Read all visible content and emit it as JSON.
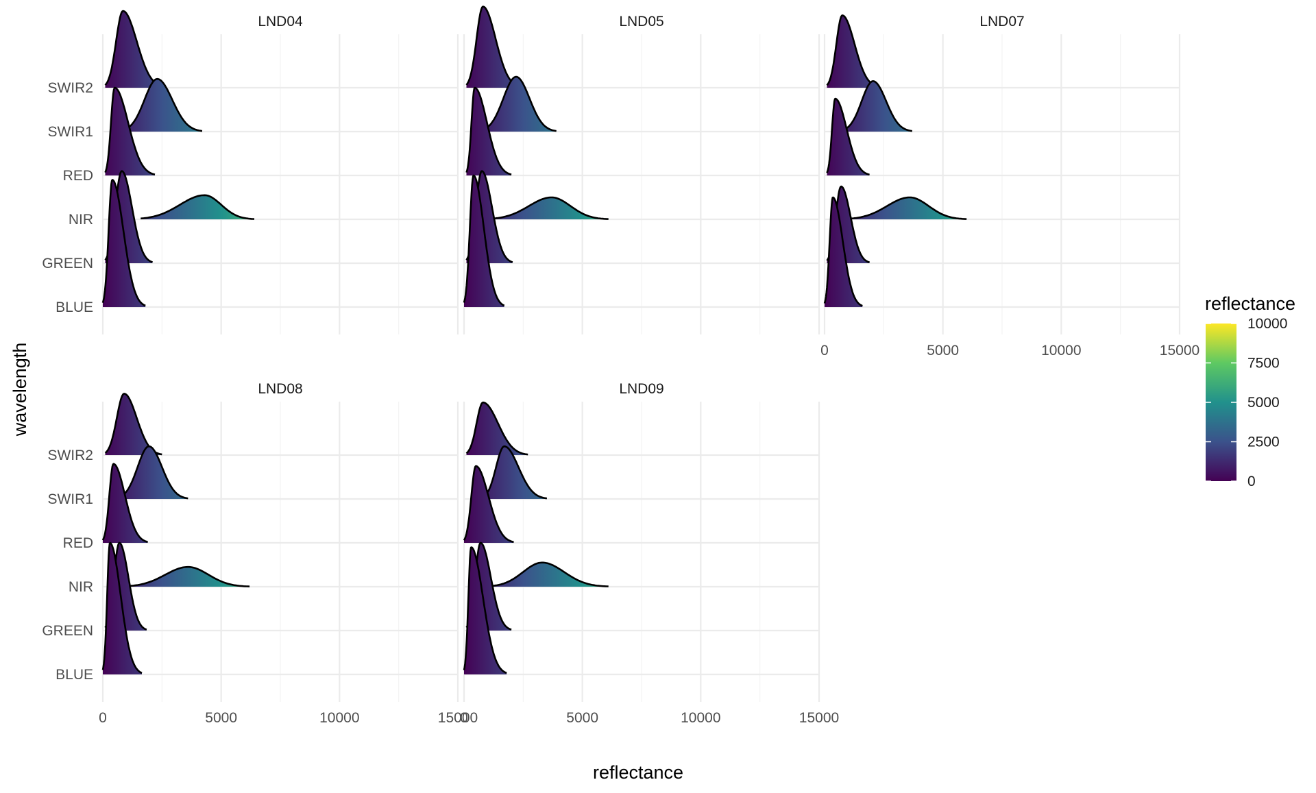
{
  "chart_data": {
    "type": "ridgeline",
    "xlabel": "reflectance",
    "ylabel": "wavelength",
    "xlim": [
      0,
      15000
    ],
    "x_ticks": [
      0,
      5000,
      10000,
      15000
    ],
    "categories": [
      "BLUE",
      "GREEN",
      "NIR",
      "RED",
      "SWIR1",
      "SWIR2"
    ],
    "grid": true,
    "legend": {
      "title": "reflectance",
      "position": "right",
      "range": [
        0,
        10000
      ],
      "ticks": [
        0,
        2500,
        5000,
        7500,
        10000
      ],
      "colormap": "viridis",
      "colors": [
        "#440154",
        "#3b528b",
        "#21918c",
        "#5ec962",
        "#fde725"
      ]
    },
    "panels": [
      {
        "name": "LND04",
        "series": [
          {
            "band": "BLUE",
            "min": 0,
            "peak": 400,
            "max": 1800,
            "height": 2.9
          },
          {
            "band": "GREEN",
            "min": 100,
            "peak": 800,
            "max": 2100,
            "height": 2.1
          },
          {
            "band": "NIR",
            "min": 1600,
            "peak": 4300,
            "max": 6400,
            "height": 0.55
          },
          {
            "band": "RED",
            "min": 100,
            "peak": 500,
            "max": 2200,
            "height": 2.0
          },
          {
            "band": "SWIR1",
            "min": 900,
            "peak": 2300,
            "max": 4200,
            "height": 1.2
          },
          {
            "band": "SWIR2",
            "min": 100,
            "peak": 850,
            "max": 2600,
            "height": 1.75
          }
        ]
      },
      {
        "name": "LND05",
        "series": [
          {
            "band": "BLUE",
            "min": 0,
            "peak": 400,
            "max": 1700,
            "height": 3.0
          },
          {
            "band": "GREEN",
            "min": 100,
            "peak": 750,
            "max": 2050,
            "height": 2.1
          },
          {
            "band": "NIR",
            "min": 1200,
            "peak": 3700,
            "max": 6100,
            "height": 0.5
          },
          {
            "band": "RED",
            "min": 100,
            "peak": 450,
            "max": 2000,
            "height": 2.0
          },
          {
            "band": "SWIR1",
            "min": 800,
            "peak": 2200,
            "max": 3900,
            "height": 1.25
          },
          {
            "band": "SWIR2",
            "min": 100,
            "peak": 800,
            "max": 2400,
            "height": 1.85
          }
        ]
      },
      {
        "name": "LND07",
        "series": [
          {
            "band": "BLUE",
            "min": 0,
            "peak": 350,
            "max": 1600,
            "height": 2.5
          },
          {
            "band": "GREEN",
            "min": 100,
            "peak": 700,
            "max": 1900,
            "height": 1.75
          },
          {
            "band": "NIR",
            "min": 1100,
            "peak": 3600,
            "max": 6000,
            "height": 0.5
          },
          {
            "band": "RED",
            "min": 100,
            "peak": 450,
            "max": 1900,
            "height": 1.75
          },
          {
            "band": "SWIR1",
            "min": 800,
            "peak": 2050,
            "max": 3700,
            "height": 1.15
          },
          {
            "band": "SWIR2",
            "min": 100,
            "peak": 750,
            "max": 2300,
            "height": 1.65
          }
        ]
      },
      {
        "name": "LND08",
        "series": [
          {
            "band": "BLUE",
            "min": 0,
            "peak": 300,
            "max": 1650,
            "height": 3.0
          },
          {
            "band": "GREEN",
            "min": 100,
            "peak": 700,
            "max": 1850,
            "height": 2.0
          },
          {
            "band": "NIR",
            "min": 1100,
            "peak": 3600,
            "max": 6200,
            "height": 0.45
          },
          {
            "band": "RED",
            "min": 0,
            "peak": 450,
            "max": 1900,
            "height": 1.8
          },
          {
            "band": "SWIR1",
            "min": 700,
            "peak": 1950,
            "max": 3600,
            "height": 1.2
          },
          {
            "band": "SWIR2",
            "min": 100,
            "peak": 900,
            "max": 2500,
            "height": 1.4
          }
        ]
      },
      {
        "name": "LND09",
        "series": [
          {
            "band": "BLUE",
            "min": 0,
            "peak": 300,
            "max": 1800,
            "height": 2.9
          },
          {
            "band": "GREEN",
            "min": 100,
            "peak": 700,
            "max": 2000,
            "height": 2.0
          },
          {
            "band": "NIR",
            "min": 1200,
            "peak": 3300,
            "max": 6100,
            "height": 0.55
          },
          {
            "band": "RED",
            "min": 0,
            "peak": 500,
            "max": 2100,
            "height": 1.75
          },
          {
            "band": "SWIR1",
            "min": 800,
            "peak": 1700,
            "max": 3500,
            "height": 1.2
          },
          {
            "band": "SWIR2",
            "min": 100,
            "peak": 800,
            "max": 2700,
            "height": 1.2
          }
        ]
      }
    ]
  }
}
